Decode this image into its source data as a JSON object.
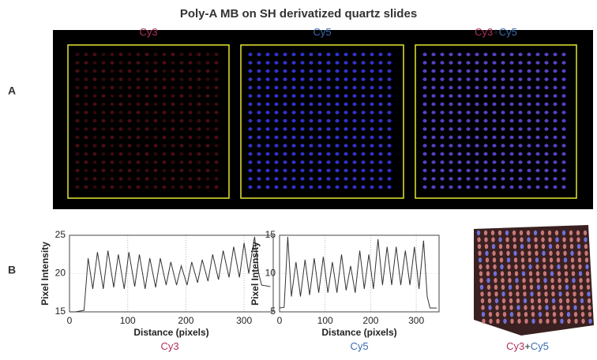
{
  "title": "Poly-A MB on SH derivatized quartz slides",
  "panel_a": {
    "label": "A",
    "captions": [
      {
        "parts": [
          "Cy3"
        ]
      },
      {
        "parts": [
          "Cy5"
        ]
      },
      {
        "parts": [
          "Cy3",
          "+",
          "Cy5"
        ]
      }
    ]
  },
  "panel_b": {
    "label": "B",
    "captions": [
      {
        "parts": [
          "Cy3"
        ]
      },
      {
        "parts": [
          "Cy5"
        ]
      },
      {
        "parts": [
          "Cy3",
          "+",
          "Cy5"
        ]
      }
    ]
  },
  "chart_data": [
    {
      "type": "line",
      "xlabel": "Distance (pixels)",
      "ylabel": "Pixel Intensity",
      "xlim": [
        0,
        350
      ],
      "ylim": [
        15,
        25
      ],
      "xticks": [
        0,
        100,
        200,
        300
      ],
      "yticks": [
        15,
        20,
        25
      ],
      "grid": true,
      "color": "#333333",
      "x": [
        0,
        10,
        25,
        32,
        40,
        48,
        58,
        66,
        76,
        84,
        94,
        102,
        112,
        120,
        130,
        138,
        148,
        156,
        166,
        174,
        184,
        192,
        202,
        210,
        220,
        228,
        238,
        246,
        256,
        264,
        274,
        282,
        292,
        300,
        308,
        318,
        325,
        330,
        345
      ],
      "values": [
        15,
        15,
        15.2,
        22,
        18,
        22.8,
        18,
        23,
        18.2,
        22.5,
        18,
        22.8,
        18.3,
        22.5,
        18,
        22,
        18.2,
        22,
        18.5,
        21.5,
        18.5,
        21,
        18.5,
        21.5,
        18.8,
        21.8,
        19,
        22.5,
        19.2,
        23,
        19.5,
        23.5,
        19.5,
        24,
        20,
        24.8,
        20,
        18.5,
        18.3
      ]
    },
    {
      "type": "line",
      "xlabel": "Distance (pixels)",
      "ylabel": "Pixel Intensity",
      "xlim": [
        0,
        350
      ],
      "ylim": [
        5,
        15
      ],
      "xticks": [
        0,
        100,
        200,
        300
      ],
      "yticks": [
        5,
        10,
        15
      ],
      "grid": true,
      "color": "#333333",
      "x": [
        0,
        10,
        18,
        26,
        36,
        46,
        56,
        66,
        76,
        86,
        96,
        106,
        116,
        126,
        136,
        146,
        156,
        166,
        176,
        186,
        196,
        206,
        216,
        226,
        236,
        246,
        256,
        266,
        276,
        286,
        296,
        306,
        316,
        324,
        330,
        345
      ],
      "values": [
        5.5,
        5.6,
        14.8,
        7,
        11.5,
        7,
        11.8,
        7.2,
        12,
        7.5,
        12.2,
        7.5,
        11.5,
        7.5,
        12.5,
        7.8,
        11,
        7.5,
        13,
        8,
        12.5,
        8,
        14.5,
        8.5,
        13.5,
        8.5,
        13.5,
        8.5,
        13,
        8.5,
        13.5,
        8,
        14.3,
        7,
        5.5,
        5.5
      ]
    }
  ]
}
